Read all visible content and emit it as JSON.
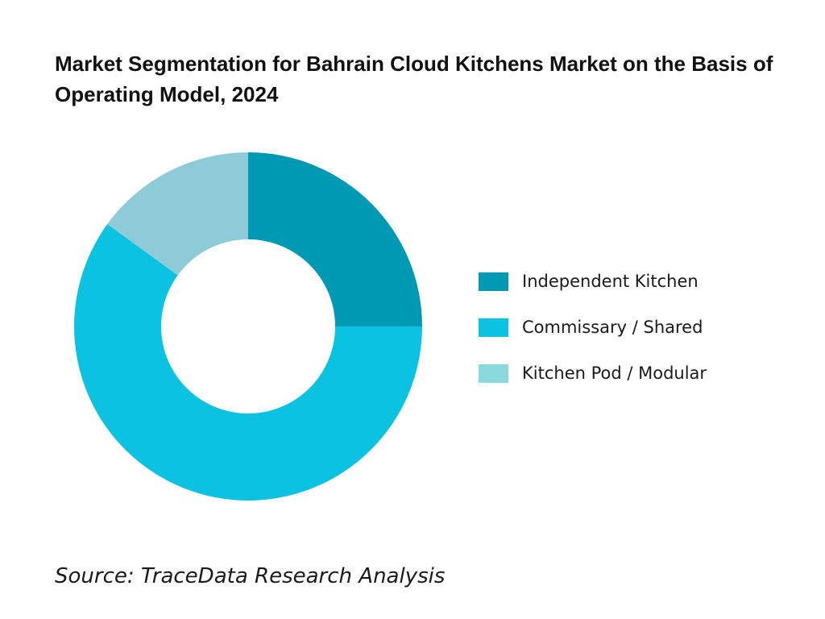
{
  "chart_data": {
    "type": "pie",
    "title": "Market Segmentation for Bahrain Cloud Kitchens Market on the Basis of Operating Model, 2024",
    "donut": true,
    "legend_position": "right",
    "categories": [
      "Independent Kitchen",
      "Commissary / Shared",
      "Kitchen Pod / Modular"
    ],
    "values": [
      25,
      60,
      15
    ],
    "colors": [
      "#0099b4",
      "#0bc3e0",
      "#8ecbd9"
    ],
    "legend_swatch_colors": [
      "#0099b4",
      "#0bc3e0",
      "#8ad9dc"
    ]
  },
  "source": "Source: TraceData Research Analysis"
}
